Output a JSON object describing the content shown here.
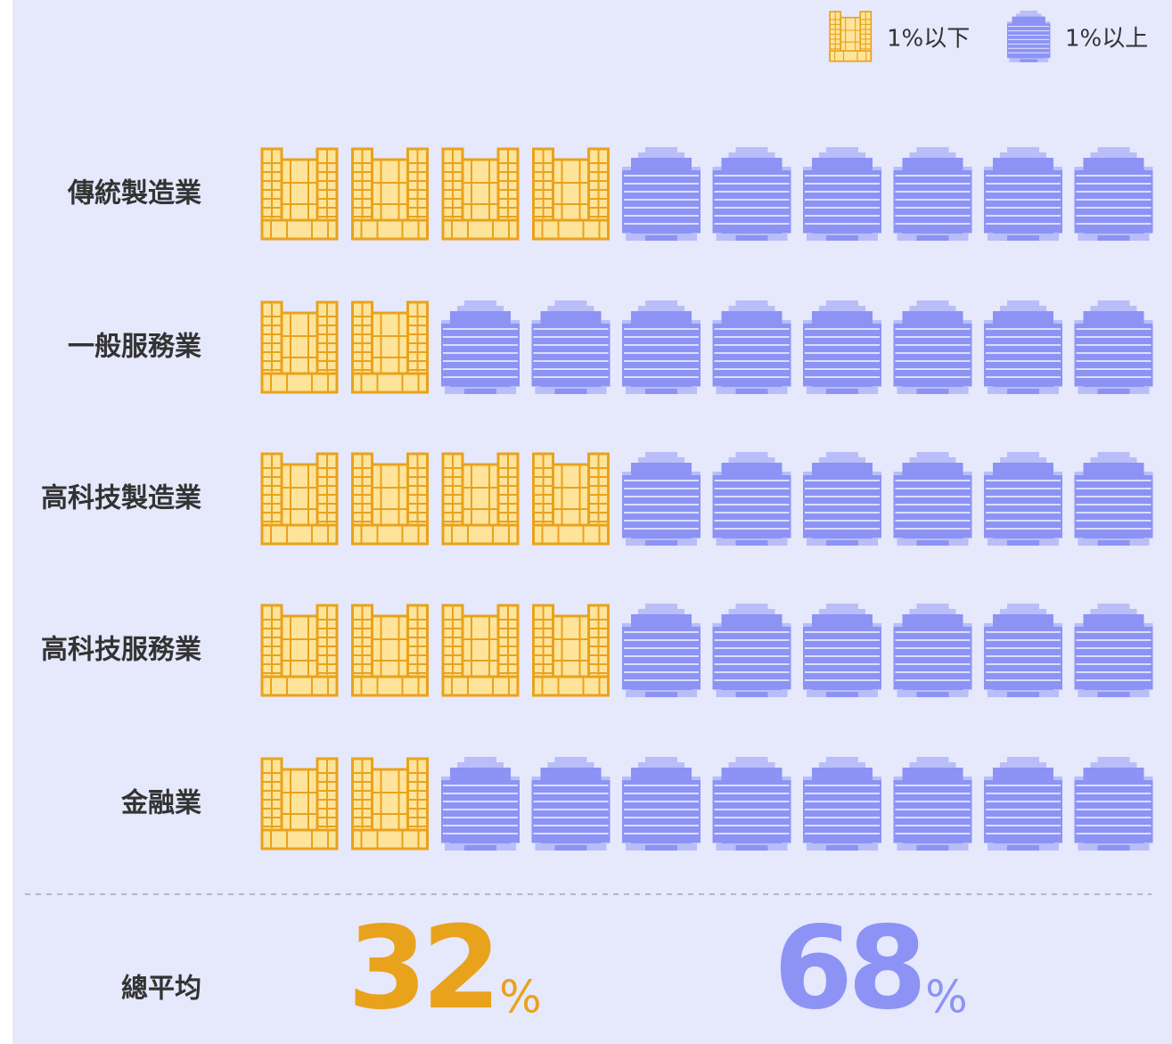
{
  "chart_data": {
    "type": "pictogram",
    "categories": [
      "傳統製造業",
      "一般服務業",
      "高科技製造業",
      "高科技服務業",
      "金融業"
    ],
    "series": [
      {
        "name": "1%以下",
        "color": "#e9a21c",
        "values": [
          4,
          2,
          4,
          4,
          2
        ]
      },
      {
        "name": "1%以上",
        "color": "#8c93f5",
        "values": [
          6,
          8,
          6,
          6,
          8
        ]
      }
    ],
    "legend": "top-right",
    "total": {
      "label": "總平均",
      "values": [
        32,
        68
      ],
      "unit": "%"
    }
  }
}
